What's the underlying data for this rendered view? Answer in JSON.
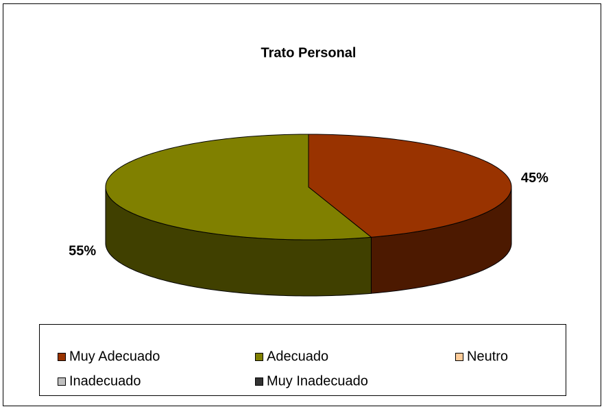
{
  "chart_data": {
    "type": "pie",
    "title": "Trato Personal",
    "categories": [
      "Muy Adecuado",
      "Adecuado",
      "Neutro",
      "Inadecuado",
      "Muy Inadecuado"
    ],
    "values": [
      45,
      55,
      0,
      0,
      0
    ],
    "value_labels": [
      "45%",
      "55%",
      null,
      null,
      null
    ],
    "colors": [
      "#993300",
      "#808000",
      "#ffcc99",
      "#c0c0c0",
      "#333333"
    ],
    "legend": "bottom"
  }
}
